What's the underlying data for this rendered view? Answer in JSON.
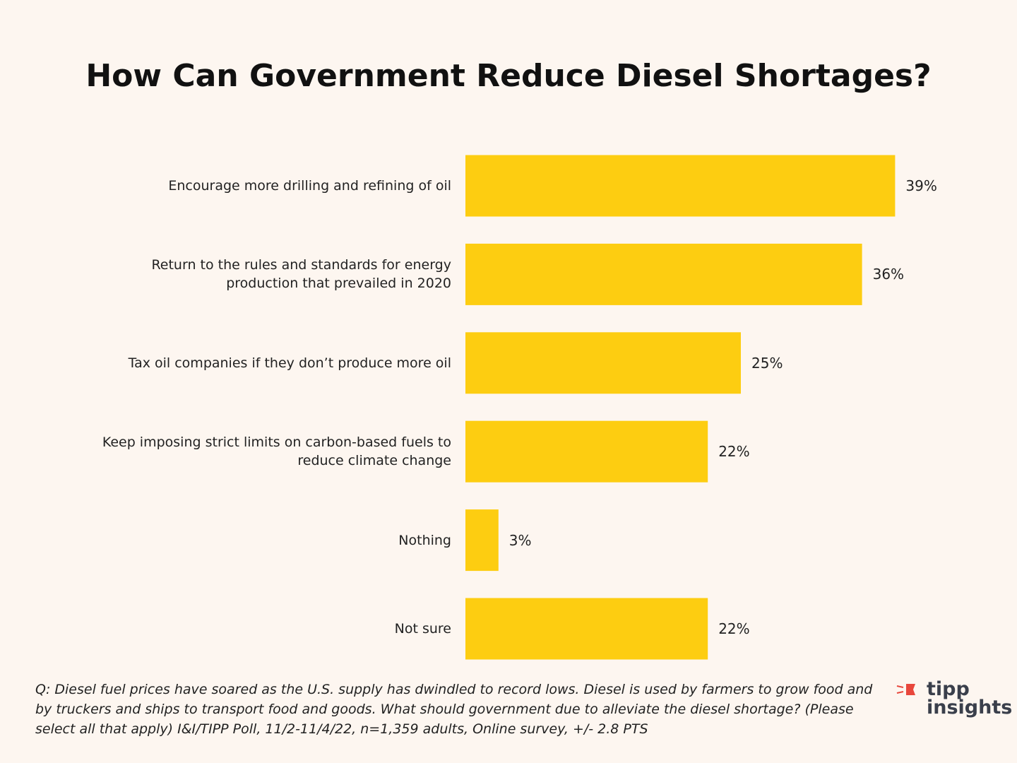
{
  "chart_data": {
    "type": "bar",
    "orientation": "horizontal",
    "title": "How Can Government Reduce Diesel Shortages?",
    "categories": [
      "Encourage more drilling and refining of oil",
      "Return to the rules and standards for energy\nproduction that prevailed in 2020",
      "Tax oil companies if they don’t produce more oil",
      "Keep imposing strict limits on carbon-based fuels to\nreduce climate change",
      "Nothing",
      "Not sure"
    ],
    "values": [
      39,
      36,
      25,
      22,
      3,
      22
    ],
    "value_labels": [
      "39%",
      "36%",
      "25%",
      "22%",
      "3%",
      "22%"
    ],
    "color": "#fdcd11",
    "note": "Q:  Diesel fuel prices have soared as the U.S. supply has dwindled to record lows. Diesel is used by farmers to grow food and by truckers and ships to transport food and goods. What should government due to alleviate the diesel shortage? (Please select all that apply) I&I/TIPP Poll, 11/2-11/4/22, n=1,359 adults, Online survey, +/- 2.8 PTS",
    "logo": [
      "tipp",
      "insights"
    ]
  }
}
